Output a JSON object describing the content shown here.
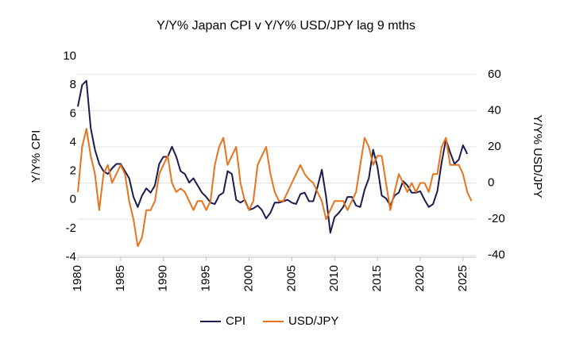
{
  "chart_data": {
    "type": "line",
    "title": "Y/Y% Japan CPI v Y/Y% USD/JPY lag 9 mths",
    "y_label": "Y/Y% CPI",
    "y2_label": "Y/Y% USD/JPY",
    "x": [
      1980,
      1980.5,
      1981,
      1981.5,
      1982,
      1982.5,
      1983,
      1983.5,
      1984,
      1984.5,
      1985,
      1985.5,
      1986,
      1986.5,
      1987,
      1987.5,
      1988,
      1988.5,
      1989,
      1989.5,
      1990,
      1990.5,
      1991,
      1991.5,
      1992,
      1992.5,
      1993,
      1993.5,
      1994,
      1994.5,
      1995,
      1995.5,
      1996,
      1996.5,
      1997,
      1997.5,
      1998,
      1998.5,
      1999,
      1999.5,
      2000,
      2000.5,
      2001,
      2001.5,
      2002,
      2002.5,
      2003,
      2003.5,
      2004,
      2004.5,
      2005,
      2005.5,
      2006,
      2006.5,
      2007,
      2007.5,
      2008,
      2008.5,
      2009,
      2009.5,
      2010,
      2010.5,
      2011,
      2011.5,
      2012,
      2012.5,
      2013,
      2013.5,
      2014,
      2014.5,
      2015,
      2015.5,
      2016,
      2016.5,
      2017,
      2017.5,
      2018,
      2018.5,
      2019,
      2019.5,
      2020,
      2020.5,
      2021,
      2021.5,
      2022,
      2022.5,
      2023,
      2023.5,
      2024,
      2024.5,
      2025,
      2025.5,
      2026
    ],
    "series": [
      {
        "name": "CPI",
        "color": "#1b1b4f",
        "axis": "y",
        "values": [
          6.5,
          8.0,
          8.3,
          5.0,
          3.5,
          2.5,
          2.0,
          1.8,
          2.2,
          2.5,
          2.5,
          2.0,
          1.5,
          0.2,
          -0.5,
          0.3,
          0.8,
          0.5,
          1.0,
          2.5,
          3.0,
          3.0,
          3.7,
          3.0,
          2.0,
          1.8,
          1.2,
          1.5,
          1.0,
          0.5,
          0.2,
          -0.2,
          -0.3,
          0.3,
          0.5,
          2.0,
          1.8,
          0.0,
          -0.2,
          0.0,
          -0.7,
          -0.6,
          -0.4,
          -0.7,
          -1.3,
          -0.9,
          -0.2,
          -0.2,
          -0.1,
          0.0,
          -0.2,
          -0.3,
          0.4,
          0.5,
          -0.1,
          -0.1,
          0.9,
          2.1,
          0.2,
          -2.3,
          -1.2,
          -0.9,
          -0.5,
          0.2,
          0.2,
          -0.4,
          -0.5,
          0.7,
          1.5,
          3.5,
          2.3,
          0.3,
          0.1,
          -0.4,
          0.3,
          0.5,
          1.3,
          1.0,
          0.5,
          0.5,
          0.6,
          0.0,
          -0.5,
          -0.3,
          0.6,
          2.6,
          4.2,
          3.3,
          2.5,
          2.8,
          3.8,
          3.2,
          null
        ]
      },
      {
        "name": "USD/JPY",
        "color": "#e8731c",
        "axis": "y2",
        "values": [
          -5,
          20,
          30,
          15,
          5,
          -15,
          5,
          10,
          0,
          5,
          10,
          5,
          -10,
          -20,
          -35,
          -30,
          -15,
          -15,
          -10,
          5,
          10,
          15,
          0,
          -5,
          -3,
          -5,
          -10,
          -15,
          -10,
          -10,
          -15,
          -10,
          10,
          20,
          25,
          10,
          15,
          20,
          0,
          -10,
          -15,
          -10,
          10,
          15,
          20,
          5,
          -5,
          -10,
          -10,
          -5,
          0,
          5,
          10,
          5,
          2,
          0,
          -5,
          -10,
          -20,
          -15,
          -10,
          -10,
          -10,
          -15,
          -10,
          -5,
          10,
          25,
          20,
          10,
          15,
          15,
          0,
          -15,
          -5,
          5,
          0,
          -5,
          0,
          -5,
          0,
          0,
          -5,
          5,
          5,
          20,
          25,
          10,
          10,
          10,
          5,
          -5,
          -10
        ]
      }
    ],
    "xlim": [
      1980,
      2026.5
    ],
    "xticks": [
      1980,
      1985,
      1990,
      1995,
      2000,
      2005,
      2010,
      2015,
      2020,
      2025
    ],
    "ylim": [
      -4,
      10
    ],
    "yticks": [
      -4,
      -2,
      0,
      2,
      4,
      6,
      8,
      10
    ],
    "y2lim": [
      -41,
      70
    ],
    "y2ticks": [
      -40,
      -20,
      0,
      20,
      40,
      60
    ],
    "grid": true,
    "legend": "bottom"
  }
}
